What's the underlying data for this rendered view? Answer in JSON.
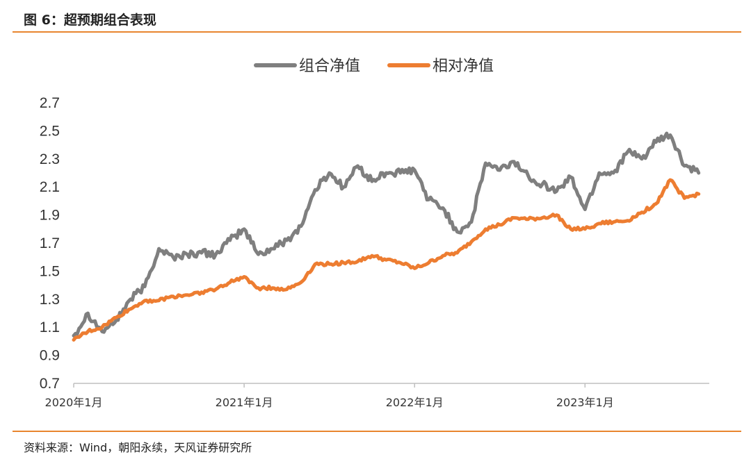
{
  "figure": {
    "title": "图 6：超预期组合表现",
    "source": "资料来源：Wind，朝阳永续，天风证券研究所"
  },
  "colors": {
    "accent": "#E8852E",
    "series_gray": "#7F7F7F",
    "series_orange": "#ED7D31"
  },
  "chart_data": {
    "type": "line",
    "xlabel": "",
    "ylabel": "",
    "ylim": [
      0.7,
      2.7
    ],
    "yticks": [
      "0.7",
      "0.9",
      "1.1",
      "1.3",
      "1.5",
      "1.7",
      "1.9",
      "2.1",
      "2.3",
      "2.5",
      "2.7"
    ],
    "xticks": [
      "2020年1月",
      "2021年1月",
      "2022年1月",
      "2023年1月"
    ],
    "xrange": [
      "2020-01",
      "2023-09"
    ],
    "legend": "top-center",
    "grid": false,
    "series": [
      {
        "name": "组合净值",
        "color": "#7F7F7F",
        "x": [
          "2020-01",
          "2020-02",
          "2020-03",
          "2020-04",
          "2020-05",
          "2020-06",
          "2020-07",
          "2020-08",
          "2020-09",
          "2020-10",
          "2020-11",
          "2020-12",
          "2021-01",
          "2021-02",
          "2021-03",
          "2021-04",
          "2021-05",
          "2021-06",
          "2021-07",
          "2021-08",
          "2021-09",
          "2021-10",
          "2021-11",
          "2021-12",
          "2022-01",
          "2022-02",
          "2022-03",
          "2022-04",
          "2022-05",
          "2022-06",
          "2022-07",
          "2022-08",
          "2022-09",
          "2022-10",
          "2022-11",
          "2022-12",
          "2023-01",
          "2023-02",
          "2023-03",
          "2023-04",
          "2023-05",
          "2023-06",
          "2023-07",
          "2023-08",
          "2023-09"
        ],
        "values": [
          1.04,
          1.2,
          1.07,
          1.15,
          1.3,
          1.39,
          1.66,
          1.6,
          1.62,
          1.63,
          1.62,
          1.72,
          1.8,
          1.62,
          1.66,
          1.72,
          1.82,
          2.08,
          2.2,
          2.1,
          2.25,
          2.14,
          2.2,
          2.2,
          2.22,
          2.01,
          1.95,
          1.78,
          1.85,
          2.27,
          2.22,
          2.28,
          2.18,
          2.12,
          2.07,
          2.17,
          1.94,
          2.2,
          2.2,
          2.35,
          2.3,
          2.42,
          2.47,
          2.25,
          2.2
        ]
      },
      {
        "name": "相对净值",
        "color": "#ED7D31",
        "x": [
          "2020-01",
          "2020-02",
          "2020-03",
          "2020-04",
          "2020-05",
          "2020-06",
          "2020-07",
          "2020-08",
          "2020-09",
          "2020-10",
          "2020-11",
          "2020-12",
          "2021-01",
          "2021-02",
          "2021-03",
          "2021-04",
          "2021-05",
          "2021-06",
          "2021-07",
          "2021-08",
          "2021-09",
          "2021-10",
          "2021-11",
          "2021-12",
          "2022-01",
          "2022-02",
          "2022-03",
          "2022-04",
          "2022-05",
          "2022-06",
          "2022-07",
          "2022-08",
          "2022-09",
          "2022-10",
          "2022-11",
          "2022-12",
          "2023-01",
          "2023-02",
          "2023-03",
          "2023-04",
          "2023-05",
          "2023-06",
          "2023-07",
          "2023-08",
          "2023-09"
        ],
        "values": [
          1.01,
          1.07,
          1.1,
          1.17,
          1.23,
          1.29,
          1.29,
          1.32,
          1.33,
          1.35,
          1.37,
          1.42,
          1.46,
          1.38,
          1.38,
          1.37,
          1.42,
          1.55,
          1.55,
          1.56,
          1.57,
          1.61,
          1.58,
          1.56,
          1.52,
          1.56,
          1.61,
          1.63,
          1.71,
          1.8,
          1.83,
          1.88,
          1.87,
          1.88,
          1.9,
          1.8,
          1.8,
          1.84,
          1.85,
          1.86,
          1.92,
          1.98,
          2.15,
          2.02,
          2.05
        ]
      }
    ]
  }
}
